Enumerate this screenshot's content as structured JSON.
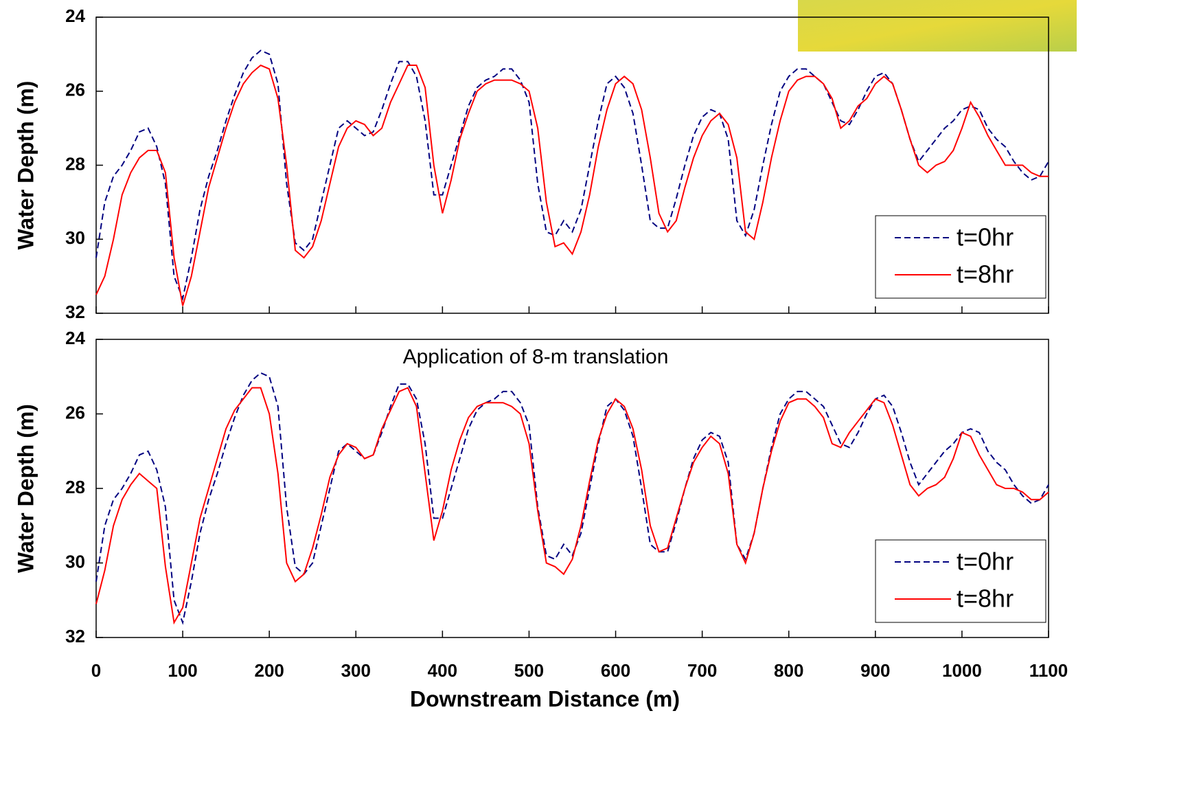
{
  "chart_data": [
    {
      "type": "line",
      "y_label": "Water Depth (m)",
      "ylim": [
        24,
        32
      ],
      "yticks": [
        24,
        26,
        28,
        30,
        32
      ],
      "y_inverted": true,
      "xlim": [
        0,
        1100
      ],
      "xticks": [
        0,
        100,
        200,
        300,
        400,
        500,
        600,
        700,
        800,
        900,
        1000,
        1100
      ],
      "x_tick_labels": false,
      "legend": "lower right",
      "x": [
        0,
        10,
        20,
        30,
        40,
        50,
        60,
        70,
        80,
        90,
        100,
        110,
        120,
        130,
        140,
        150,
        160,
        170,
        180,
        190,
        200,
        210,
        220,
        230,
        240,
        250,
        260,
        270,
        280,
        290,
        300,
        310,
        320,
        330,
        340,
        350,
        360,
        370,
        380,
        390,
        400,
        410,
        420,
        430,
        440,
        450,
        460,
        470,
        480,
        490,
        500,
        510,
        520,
        530,
        540,
        550,
        560,
        570,
        580,
        590,
        600,
        610,
        620,
        630,
        640,
        650,
        660,
        670,
        680,
        690,
        700,
        710,
        720,
        730,
        740,
        750,
        760,
        770,
        780,
        790,
        800,
        810,
        820,
        830,
        840,
        850,
        860,
        870,
        880,
        890,
        900,
        910,
        920,
        930,
        940,
        950,
        960,
        970,
        980,
        990,
        1000,
        1010,
        1020,
        1030,
        1040,
        1050,
        1060,
        1070,
        1080,
        1090,
        1100
      ],
      "series": [
        {
          "name": "t=0hr",
          "color": "#000080",
          "linestyle": "dashed",
          "values": [
            30.5,
            29.0,
            28.3,
            28.0,
            27.6,
            27.1,
            27.0,
            27.5,
            28.5,
            31.0,
            31.6,
            30.5,
            29.2,
            28.3,
            27.6,
            26.8,
            26.1,
            25.5,
            25.1,
            24.9,
            25.0,
            25.8,
            28.5,
            30.1,
            30.3,
            30.0,
            29.0,
            28.0,
            27.0,
            26.8,
            27.0,
            27.2,
            27.1,
            26.5,
            25.8,
            25.2,
            25.2,
            25.6,
            26.8,
            28.8,
            28.8,
            28.0,
            27.2,
            26.4,
            25.9,
            25.7,
            25.6,
            25.4,
            25.4,
            25.7,
            26.3,
            28.5,
            29.8,
            29.9,
            29.5,
            29.8,
            29.2,
            28.0,
            26.8,
            25.8,
            25.6,
            25.9,
            26.6,
            28.0,
            29.5,
            29.7,
            29.7,
            28.9,
            28.0,
            27.2,
            26.7,
            26.5,
            26.6,
            27.3,
            29.5,
            29.9,
            29.2,
            28.0,
            26.9,
            26.0,
            25.6,
            25.4,
            25.4,
            25.6,
            25.8,
            26.3,
            26.8,
            26.9,
            26.5,
            26.0,
            25.6,
            25.5,
            25.8,
            26.5,
            27.3,
            27.9,
            27.6,
            27.3,
            27.0,
            26.8,
            26.5,
            26.4,
            26.5,
            27.0,
            27.3,
            27.5,
            27.9,
            28.2,
            28.4,
            28.3,
            27.9
          ]
        },
        {
          "name": "t=8hr",
          "color": "#ff0000",
          "linestyle": "solid",
          "values": [
            31.5,
            31.0,
            30.0,
            28.8,
            28.2,
            27.8,
            27.6,
            27.6,
            28.2,
            30.5,
            31.8,
            31.0,
            29.8,
            28.6,
            27.8,
            27.0,
            26.3,
            25.8,
            25.5,
            25.3,
            25.4,
            26.2,
            28.0,
            30.3,
            30.5,
            30.2,
            29.5,
            28.5,
            27.5,
            27.0,
            26.8,
            26.9,
            27.2,
            27.0,
            26.3,
            25.8,
            25.3,
            25.3,
            25.9,
            28.0,
            29.3,
            28.4,
            27.3,
            26.6,
            26.0,
            25.8,
            25.7,
            25.7,
            25.7,
            25.8,
            26.0,
            27.0,
            29.0,
            30.2,
            30.1,
            30.4,
            29.8,
            28.8,
            27.5,
            26.5,
            25.8,
            25.6,
            25.8,
            26.5,
            27.8,
            29.3,
            29.8,
            29.5,
            28.6,
            27.8,
            27.2,
            26.8,
            26.6,
            26.9,
            27.8,
            29.8,
            30.0,
            29.0,
            27.8,
            26.8,
            26.0,
            25.7,
            25.6,
            25.6,
            25.8,
            26.2,
            27.0,
            26.8,
            26.4,
            26.2,
            25.8,
            25.6,
            25.8,
            26.5,
            27.3,
            28.0,
            28.2,
            28.0,
            27.9,
            27.6,
            27.0,
            26.3,
            26.7,
            27.2,
            27.6,
            28.0,
            28.0,
            28.0,
            28.2,
            28.3,
            28.3
          ]
        }
      ]
    },
    {
      "type": "line",
      "annotation": "Application of 8-m translation",
      "y_label": "Water Depth (m)",
      "x_label": "Downstream Distance (m)",
      "ylim": [
        24,
        32
      ],
      "yticks": [
        24,
        26,
        28,
        30,
        32
      ],
      "y_inverted": true,
      "xlim": [
        0,
        1100
      ],
      "xticks": [
        0,
        100,
        200,
        300,
        400,
        500,
        600,
        700,
        800,
        900,
        1000,
        1100
      ],
      "x_tick_labels": true,
      "legend": "lower right",
      "x": [
        0,
        10,
        20,
        30,
        40,
        50,
        60,
        70,
        80,
        90,
        100,
        110,
        120,
        130,
        140,
        150,
        160,
        170,
        180,
        190,
        200,
        210,
        220,
        230,
        240,
        250,
        260,
        270,
        280,
        290,
        300,
        310,
        320,
        330,
        340,
        350,
        360,
        370,
        380,
        390,
        400,
        410,
        420,
        430,
        440,
        450,
        460,
        470,
        480,
        490,
        500,
        510,
        520,
        530,
        540,
        550,
        560,
        570,
        580,
        590,
        600,
        610,
        620,
        630,
        640,
        650,
        660,
        670,
        680,
        690,
        700,
        710,
        720,
        730,
        740,
        750,
        760,
        770,
        780,
        790,
        800,
        810,
        820,
        830,
        840,
        850,
        860,
        870,
        880,
        890,
        900,
        910,
        920,
        930,
        940,
        950,
        960,
        970,
        980,
        990,
        1000,
        1010,
        1020,
        1030,
        1040,
        1050,
        1060,
        1070,
        1080,
        1090,
        1100
      ],
      "series": [
        {
          "name": "t=0hr",
          "color": "#000080",
          "linestyle": "dashed",
          "values": [
            30.5,
            29.0,
            28.3,
            28.0,
            27.6,
            27.1,
            27.0,
            27.5,
            28.5,
            31.0,
            31.6,
            30.5,
            29.2,
            28.3,
            27.6,
            26.8,
            26.1,
            25.5,
            25.1,
            24.9,
            25.0,
            25.8,
            28.5,
            30.1,
            30.3,
            30.0,
            29.0,
            28.0,
            27.0,
            26.8,
            27.0,
            27.2,
            27.1,
            26.5,
            25.8,
            25.2,
            25.2,
            25.6,
            26.8,
            28.8,
            28.8,
            28.0,
            27.2,
            26.4,
            25.9,
            25.7,
            25.6,
            25.4,
            25.4,
            25.7,
            26.3,
            28.5,
            29.8,
            29.9,
            29.5,
            29.8,
            29.2,
            28.0,
            26.8,
            25.8,
            25.6,
            25.9,
            26.6,
            28.0,
            29.5,
            29.7,
            29.7,
            28.9,
            28.0,
            27.2,
            26.7,
            26.5,
            26.6,
            27.3,
            29.5,
            29.9,
            29.2,
            28.0,
            26.9,
            26.0,
            25.6,
            25.4,
            25.4,
            25.6,
            25.8,
            26.3,
            26.8,
            26.9,
            26.5,
            26.0,
            25.6,
            25.5,
            25.8,
            26.5,
            27.3,
            27.9,
            27.6,
            27.3,
            27.0,
            26.8,
            26.5,
            26.4,
            26.5,
            27.0,
            27.3,
            27.5,
            27.9,
            28.2,
            28.4,
            28.3,
            27.9
          ]
        },
        {
          "name": "t=8hr",
          "color": "#ff0000",
          "linestyle": "solid",
          "values": [
            31.1,
            30.2,
            29.0,
            28.3,
            27.9,
            27.6,
            27.8,
            28.0,
            30.1,
            31.6,
            31.2,
            30.0,
            28.8,
            28.0,
            27.2,
            26.4,
            25.9,
            25.6,
            25.3,
            25.3,
            26.0,
            27.6,
            30.0,
            30.5,
            30.3,
            29.6,
            28.7,
            27.7,
            27.1,
            26.8,
            26.9,
            27.2,
            27.1,
            26.4,
            25.9,
            25.4,
            25.3,
            25.8,
            27.6,
            29.4,
            28.6,
            27.5,
            26.7,
            26.1,
            25.8,
            25.7,
            25.7,
            25.7,
            25.8,
            26.0,
            26.8,
            28.6,
            30.0,
            30.1,
            30.3,
            29.9,
            29.0,
            27.8,
            26.7,
            26.0,
            25.6,
            25.8,
            26.4,
            27.5,
            29.0,
            29.7,
            29.6,
            28.8,
            28.0,
            27.3,
            26.9,
            26.6,
            26.8,
            27.6,
            29.5,
            30.0,
            29.2,
            28.0,
            27.0,
            26.2,
            25.7,
            25.6,
            25.6,
            25.8,
            26.1,
            26.8,
            26.9,
            26.5,
            26.2,
            25.9,
            25.6,
            25.7,
            26.3,
            27.1,
            27.9,
            28.2,
            28.0,
            27.9,
            27.7,
            27.2,
            26.5,
            26.6,
            27.1,
            27.5,
            27.9,
            28.0,
            28.0,
            28.1,
            28.3,
            28.3,
            28.1
          ]
        }
      ]
    }
  ]
}
